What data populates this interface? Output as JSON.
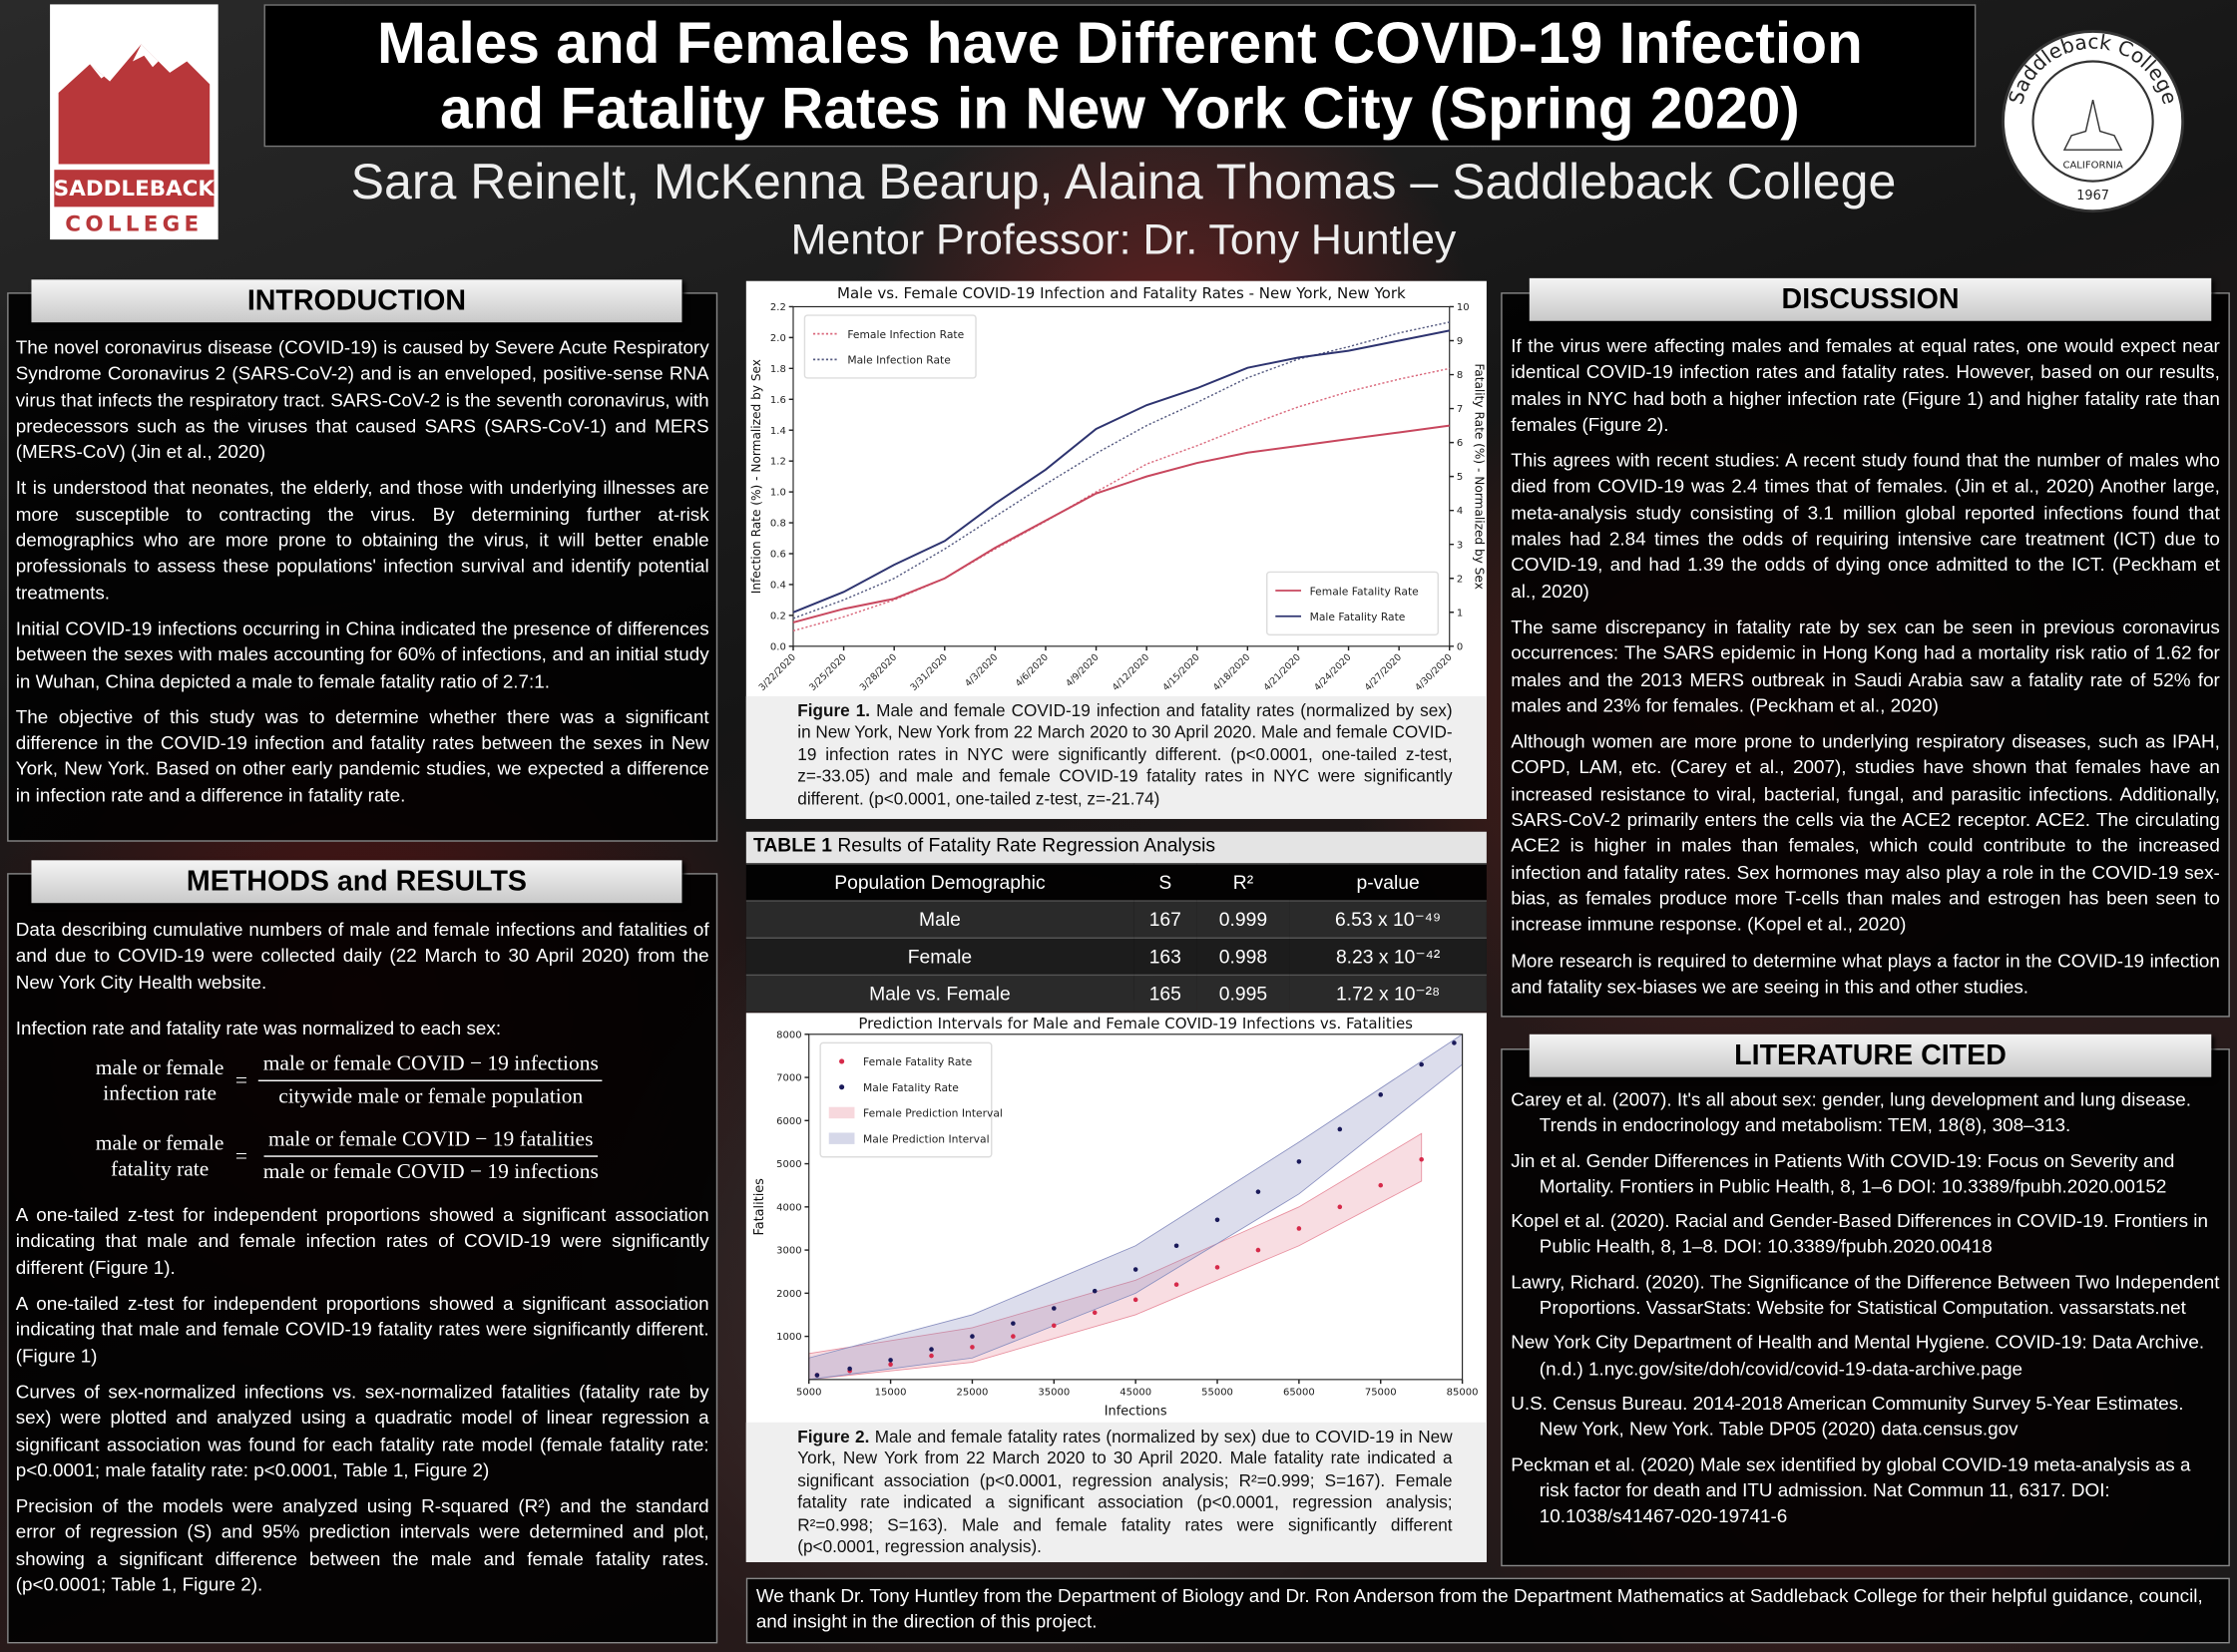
{
  "header": {
    "title_line1": "Males and Females have Different COVID-19 Infection",
    "title_line2": "and Fatality Rates in New York City (Spring 2020)",
    "authors": "Sara Reinelt, McKenna Bearup, Alaina Thomas – Saddleback College",
    "mentor": "Mentor Professor: Dr. Tony Huntley"
  },
  "logo": {
    "line1": "SADDLEBACK",
    "line2": "COLLEGE"
  },
  "seal": {
    "name": "Saddleback College",
    "state": "CALIFORNIA",
    "year": "1967"
  },
  "introduction": {
    "heading": "INTRODUCTION",
    "paragraphs": [
      "The novel coronavirus disease (COVID-19) is caused by Severe Acute Respiratory Syndrome Coronavirus 2 (SARS-CoV-2) and is an enveloped, positive-sense RNA virus that infects the respiratory tract. SARS-CoV-2 is the seventh coronavirus, with predecessors such as the viruses that caused SARS (SARS-CoV-1) and MERS (MERS-CoV) (Jin et al., 2020)",
      "It is understood that neonates, the elderly, and those with underlying illnesses are more susceptible to contracting the virus. By determining further at-risk demographics who are more prone to obtaining the virus, it will better enable professionals to assess these populations' infection survival and identify potential treatments.",
      "Initial COVID-19 infections occurring in China indicated the presence of differences between the sexes with males accounting for 60% of infections, and an initial study in Wuhan, China depicted a male to female fatality ratio of 2.7:1.",
      "The objective of this study was to determine whether there was a significant difference in the COVID-19 infection and fatality rates between the sexes in New York, New York. Based on other early pandemic studies, we expected a difference in infection rate and a difference in fatality rate."
    ]
  },
  "methods": {
    "heading": "METHODS and RESULTS",
    "paragraphs": [
      "Data describing cumulative numbers of male and female infections and fatalities of and due to COVID-19 were collected daily (22 March to 30 April 2020) from the New York City Health website.",
      "Infection rate and fatality rate was normalized to each sex:",
      "A one-tailed z-test for independent proportions showed a significant association indicating that male and female infection rates of COVID-19 were significantly different (Figure 1).",
      "A one-tailed z-test for independent proportions showed a significant association indicating that male and female COVID-19 fatality rates were significantly different.  (Figure 1)",
      "Curves of sex-normalized infections vs. sex-normalized fatalities (fatality rate by sex) were plotted and analyzed using a quadratic model of linear regression a significant association was found for each fatality rate model (female fatality rate: p<0.0001; male fatality rate: p<0.0001, Table 1, Figure 2)",
      "Precision of the models were analyzed using R-squared (R²) and the standard error of regression (S) and 95% prediction intervals were determined and plot, showing a significant difference between the male and female fatality rates. (p<0.0001; Table 1, Figure 2)."
    ],
    "equations": [
      {
        "lhs": [
          "male or female",
          "infection rate"
        ],
        "eq": "=",
        "numerator": "male or female COVID − 19 infections",
        "denominator": "citywide male or female population"
      },
      {
        "lhs": [
          "male or female",
          "fatality rate"
        ],
        "eq": "=",
        "numerator": "male or female COVID − 19 fatalities",
        "denominator": "male or female COVID − 19 infections"
      }
    ]
  },
  "chart_data": [
    {
      "type": "line",
      "title": "Male vs. Female COVID-19 Infection and Fatality Rates - New York, New York",
      "y_label": "Infection Rate (%) - Normalized by Sex",
      "y2_label": "Fatality Rate (%) - Normalized by Sex",
      "categories": [
        "3/22/2020",
        "3/25/2020",
        "3/28/2020",
        "3/31/2020",
        "4/3/2020",
        "4/6/2020",
        "4/9/2020",
        "4/12/2020",
        "4/15/2020",
        "4/18/2020",
        "4/21/2020",
        "4/24/2020",
        "4/27/2020",
        "4/30/2020"
      ],
      "ylim": [
        0,
        2.2
      ],
      "yticks": [
        {
          "value": 0,
          "label": "0.0"
        },
        0.2,
        0.4,
        0.6,
        0.8,
        {
          "value": 1,
          "label": "1.0"
        },
        1.2,
        1.4,
        1.6,
        1.8,
        {
          "value": 2,
          "label": "2.0"
        },
        2.2
      ],
      "y2lim": [
        0,
        10
      ],
      "y2ticks": [
        0,
        1,
        2,
        3,
        4,
        5,
        6,
        7,
        8,
        9,
        10
      ],
      "legend_corners": {
        "y": "upper left",
        "y2": "lower right"
      },
      "series": [
        {
          "name": "Female Infection Rate",
          "color": "#d9667a",
          "linestyle": "dotted",
          "values": [
            0.1,
            0.19,
            0.3,
            0.44,
            0.63,
            0.81,
            1.0,
            1.18,
            1.3,
            1.43,
            1.55,
            1.65,
            1.73,
            1.8
          ]
        },
        {
          "name": "Male Infection Rate",
          "color": "#555a80",
          "linestyle": "dotted",
          "values": [
            0.18,
            0.3,
            0.44,
            0.63,
            0.84,
            1.05,
            1.25,
            1.43,
            1.58,
            1.74,
            1.86,
            1.94,
            2.03,
            2.1
          ]
        },
        {
          "name": "Female Fatality Rate",
          "color": "#c8475e",
          "linestyle": "solid",
          "axis": "y2",
          "values": [
            0.7,
            1.1,
            1.4,
            2.0,
            2.9,
            3.7,
            4.5,
            5.0,
            5.4,
            5.7,
            5.9,
            6.1,
            6.3,
            6.5
          ]
        },
        {
          "name": "Male Fatality Rate",
          "color": "#2e3470",
          "linestyle": "solid",
          "axis": "y2",
          "values": [
            1.0,
            1.6,
            2.4,
            3.1,
            4.2,
            5.2,
            6.4,
            7.1,
            7.6,
            8.2,
            8.5,
            8.7,
            9.0,
            9.3
          ]
        }
      ]
    },
    {
      "type": "scatter",
      "title": "Prediction Intervals for Male and Female COVID-19 Infections vs. Fatalities",
      "x_label": "Infections",
      "y_label": "Fatalities",
      "xlim": [
        5000,
        85000
      ],
      "xticks": [
        5000,
        15000,
        25000,
        35000,
        45000,
        55000,
        65000,
        75000,
        85000
      ],
      "ylim": [
        0,
        8000
      ],
      "yticks": [
        1000,
        2000,
        3000,
        4000,
        5000,
        6000,
        7000,
        8000
      ],
      "legend_corner": "upper left",
      "series": [
        {
          "name": "Female Fatality Rate",
          "color": "#d62a4a",
          "x": [
            6000,
            10000,
            15000,
            20000,
            25000,
            30000,
            35000,
            40000,
            45000,
            50000,
            55000,
            60000,
            65000,
            70000,
            75000,
            80000
          ],
          "values": [
            100,
            200,
            350,
            550,
            750,
            1000,
            1250,
            1550,
            1850,
            2200,
            2600,
            3000,
            3500,
            4000,
            4500,
            5100
          ]
        },
        {
          "name": "Male Fatality Rate",
          "color": "#1a1a5a",
          "x": [
            6000,
            10000,
            15000,
            20000,
            25000,
            30000,
            35000,
            40000,
            45000,
            50000,
            55000,
            60000,
            65000,
            70000,
            75000,
            80000,
            84000
          ],
          "values": [
            100,
            250,
            450,
            700,
            1000,
            1300,
            1650,
            2050,
            2550,
            3100,
            3700,
            4350,
            5050,
            5800,
            6600,
            7300,
            7800
          ]
        }
      ],
      "intervals": [
        {
          "name": "Female Prediction Interval",
          "color": "#e8909f",
          "x": [
            5000,
            25000,
            45000,
            65000,
            80000
          ],
          "lower": [
            0,
            400,
            1500,
            3100,
            4600
          ],
          "upper": [
            600,
            1200,
            2300,
            4000,
            5700
          ]
        },
        {
          "name": "Male Prediction Interval",
          "color": "#8a90c0",
          "x": [
            5000,
            25000,
            45000,
            65000,
            85000
          ],
          "lower": [
            0,
            500,
            2000,
            4300,
            7300
          ],
          "upper": [
            500,
            1500,
            3100,
            5500,
            8000
          ]
        }
      ]
    }
  ],
  "figure1": {
    "label": "Figure 1.",
    "text": "Male and female COVID-19 infection and fatality rates (normalized by sex) in New York, New York from 22 March 2020 to 30 April 2020. Male and female COVID-19 infection rates in NYC were significantly different. (p<0.0001, one-tailed z-test, z=-33.05) and male and female COVID-19 fatality rates in NYC were significantly different. (p<0.0001, one-tailed z-test, z=-21.74)"
  },
  "figure2": {
    "label": "Figure 2.",
    "text": "Male and female fatality rates (normalized by sex) due to COVID-19 in New York, New York from 22 March 2020 to 30 April 2020. Male fatality rate indicated a significant association (p<0.0001, regression analysis; R²=0.999; S=167). Female fatality rate indicated a significant association (p<0.0001, regression analysis; R²=0.998; S=163). Male and female fatality rates were significantly different (p<0.0001, regression analysis)."
  },
  "table": {
    "label": "TABLE 1",
    "title": "Results of Fatality Rate Regression Analysis",
    "columns": [
      "Population Demographic",
      "S",
      "R²",
      "p-value"
    ],
    "rows": [
      [
        "Male",
        167,
        0.999,
        "6.53 x 10⁻⁴⁹"
      ],
      [
        "Female",
        163,
        0.998,
        "8.23 x 10⁻⁴²"
      ],
      [
        "Male vs. Female",
        165,
        0.995,
        "1.72 x 10⁻²⁸"
      ]
    ]
  },
  "discussion": {
    "heading": "DISCUSSION",
    "paragraphs": [
      "If the virus were affecting males and females at equal rates, one would expect near identical COVID-19 infection rates and fatality rates. However, based on our results, males in NYC had both a higher infection rate (Figure 1) and higher fatality rate than females (Figure 2).",
      "This agrees with recent studies: A recent study found that the number of males who died from COVID-19 was 2.4 times that of females. (Jin et al., 2020) Another large, meta-analysis study consisting of 3.1 million global reported infections found that males had 2.84 times the odds of requiring intensive care treatment (ICT) due to COVID-19, and had 1.39 the odds of dying once admitted to the ICT. (Peckham et al., 2020)",
      "The same discrepancy in fatality rate by sex can be seen in previous coronavirus occurrences: The SARS epidemic in Hong Kong had a mortality risk ratio of 1.62 for males and the 2013 MERS outbreak in Saudi Arabia saw a fatality rate of 52% for males and 23% for females. (Peckham et al., 2020)",
      "Although women are more prone to underlying respiratory diseases, such as IPAH, COPD, LAM, etc. (Carey et al., 2007), studies have shown that females have an increased resistance to viral, bacterial, fungal, and parasitic infections. Additionally, SARS-CoV-2 primarily enters the cells via the ACE2 receptor. ACE2. The circulating ACE2 is higher in males than females, which could contribute to the increased infection and fatality rates. Sex hormones may also play a role in the COVID-19 sex-bias, as females produce more T-cells than males and estrogen has been seen to increase immune response. (Kopel et al., 2020)",
      "More research is required to determine what plays a factor in the COVID-19 infection and fatality sex-biases we are seeing in this and other studies."
    ]
  },
  "literature": {
    "heading": "LITERATURE CITED",
    "entries": [
      "Carey et al. (2007). It's all about sex: gender, lung development and lung disease. Trends in endocrinology and metabolism: TEM, 18(8), 308–313.",
      "Jin et al. Gender Differences in Patients With COVID-19: Focus on Severity and Mortality. Frontiers in Public Health, 8, 1–6 DOI: 10.3389/fpubh.2020.00152",
      "Kopel et al. (2020). Racial and Gender-Based Differences in COVID-19. Frontiers in Public Health, 8, 1–8. DOI: 10.3389/fpubh.2020.00418",
      "Lawry, Richard. (2020). The Significance of the Difference Between Two Independent Proportions. VassarStats: Website for Statistical Computation. vassarstats.net",
      "New York City Department of Health and Mental Hygiene. COVID-19: Data Archive. (n.d.) 1.nyc.gov/site/doh/covid/covid-19-data-archive.page",
      "U.S. Census Bureau. 2014-2018 American Community Survey 5-Year Estimates. New York, New York. Table DP05 (2020) data.census.gov",
      "Peckman et al. (2020) Male sex identified by global COVID-19 meta-analysis as a risk factor for death and ITU admission. Nat Commun 11, 6317. DOI: 10.1038/s41467-020-19741-6"
    ]
  },
  "acknowledgement": "We thank Dr. Tony Huntley from the Department of Biology and Dr. Ron Anderson from the Department Mathematics at Saddleback College for their helpful guidance, council, and insight in the direction of this project."
}
